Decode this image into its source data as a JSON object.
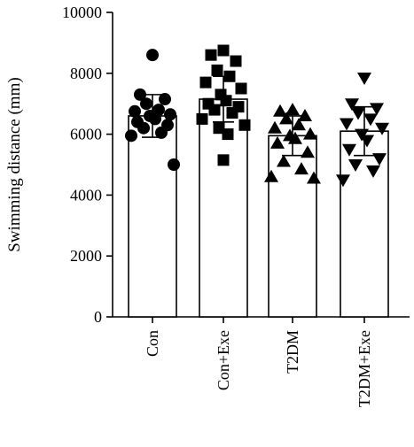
{
  "chart_data": {
    "type": "bar",
    "title": "",
    "xlabel": "",
    "ylabel": "Swimming distance (mm)",
    "ylim": [
      0,
      10000
    ],
    "yticks": [
      0,
      2000,
      4000,
      6000,
      8000,
      10000
    ],
    "categories": [
      "Con",
      "Con+Exe",
      "T2DM",
      "T2DM+Exe"
    ],
    "values": [
      6600,
      7150,
      5950,
      6100
    ],
    "sem": [
      700,
      750,
      650,
      800
    ],
    "marker_shapes": [
      "circle",
      "square",
      "triangle-up",
      "triangle-down"
    ],
    "points": [
      [
        8600,
        7300,
        7150,
        7000,
        6800,
        6750,
        6650,
        6600,
        6500,
        6400,
        6300,
        6200,
        6050,
        5950,
        5000
      ],
      [
        8750,
        8600,
        8400,
        8100,
        7900,
        7700,
        7500,
        7300,
        7100,
        7000,
        6900,
        6800,
        6700,
        6500,
        6300,
        6200,
        6000,
        5150
      ],
      [
        6800,
        6750,
        6600,
        6500,
        6300,
        6200,
        6000,
        5950,
        5850,
        5700,
        5400,
        5100,
        4850,
        4600,
        4550
      ],
      [
        7850,
        7000,
        6850,
        6700,
        6500,
        6350,
        6200,
        6000,
        5800,
        5500,
        5200,
        5000,
        4800,
        4500
      ]
    ],
    "colors": {
      "bar_fill": "#ffffff",
      "stroke": "#000000",
      "marker": "#000000"
    },
    "grid": false
  }
}
